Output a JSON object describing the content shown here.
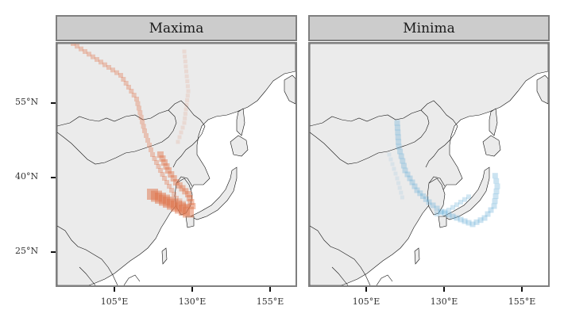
{
  "panels": [
    {
      "title": "Maxima",
      "color": "#e0734a"
    },
    {
      "title": "Minima",
      "color": "#6baed6"
    }
  ],
  "axes": {
    "y_ticks": [
      "55°N",
      "40°N",
      "25°N"
    ],
    "x_ticks": [
      "105°E",
      "130°E",
      "155°E"
    ]
  },
  "colors": {
    "land_outside": "#ebebeb",
    "land_study": "#ffffff",
    "border": "#111111",
    "strip_bg": "#cccccc",
    "frame": "#7f7f7f"
  }
}
